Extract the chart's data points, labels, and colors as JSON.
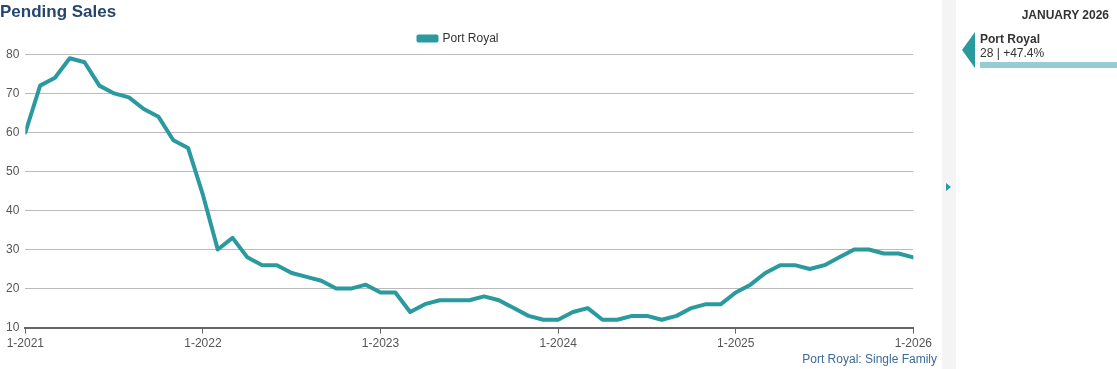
{
  "chart_data": {
    "type": "line",
    "title": "Pending Sales",
    "x": [
      "2021-01",
      "2021-02",
      "2021-03",
      "2021-04",
      "2021-05",
      "2021-06",
      "2021-07",
      "2021-08",
      "2021-09",
      "2021-10",
      "2021-11",
      "2021-12",
      "2022-01",
      "2022-02",
      "2022-03",
      "2022-04",
      "2022-05",
      "2022-06",
      "2022-07",
      "2022-08",
      "2022-09",
      "2022-10",
      "2022-11",
      "2022-12",
      "2023-01",
      "2023-02",
      "2023-03",
      "2023-04",
      "2023-05",
      "2023-06",
      "2023-07",
      "2023-08",
      "2023-09",
      "2023-10",
      "2023-11",
      "2023-12",
      "2024-01",
      "2024-02",
      "2024-03",
      "2024-04",
      "2024-05",
      "2024-06",
      "2024-07",
      "2024-08",
      "2024-09",
      "2024-10",
      "2024-11",
      "2024-12",
      "2025-01",
      "2025-02",
      "2025-03",
      "2025-04",
      "2025-05",
      "2025-06",
      "2025-07",
      "2025-08",
      "2025-09",
      "2025-10",
      "2025-11",
      "2025-12",
      "2026-01"
    ],
    "series": [
      {
        "name": "Port Royal",
        "color": "#2a9a9e",
        "values": [
          60,
          72,
          74,
          79,
          78,
          72,
          70,
          69,
          66,
          64,
          58,
          56,
          44,
          30,
          33,
          28,
          26,
          26,
          24,
          23,
          22,
          20,
          20,
          21,
          19,
          19,
          14,
          16,
          17,
          17,
          17,
          18,
          17,
          15,
          13,
          12,
          12,
          14,
          15,
          12,
          12,
          13,
          13,
          12,
          13,
          15,
          16,
          16,
          19,
          21,
          24,
          26,
          26,
          25,
          26,
          28,
          30,
          30,
          29,
          29,
          28
        ]
      }
    ],
    "xlim": [
      "2021-01",
      "2026-01"
    ],
    "xticks": [
      {
        "value": "2021-01",
        "label": "1-2021"
      },
      {
        "value": "2022-01",
        "label": "1-2022"
      },
      {
        "value": "2023-01",
        "label": "1-2023"
      },
      {
        "value": "2024-01",
        "label": "1-2024"
      },
      {
        "value": "2025-01",
        "label": "1-2025"
      },
      {
        "value": "2026-01",
        "label": "1-2026"
      }
    ],
    "ylim": [
      10,
      80
    ],
    "yticks": [
      10,
      20,
      30,
      40,
      50,
      60,
      70,
      80
    ],
    "grid": "y",
    "legend": "top",
    "marker": "none",
    "line_style": "solid",
    "annotations": [
      "JANUARY 2026",
      "Port Royal",
      "28 | +47.4%",
      "Port Royal: Single Family"
    ]
  }
}
